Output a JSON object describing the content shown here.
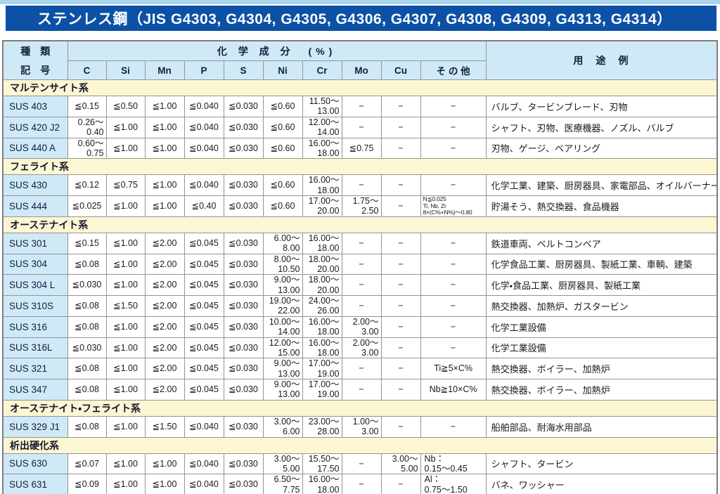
{
  "title": "ステンレス鋼（JIS G4303, G4304, G4305, G4306, G4307, G4308, G4309, G4313, G4314）",
  "header": {
    "col1_line1": "種　類",
    "col1_line2": "記　号",
    "chem_group": "化 学 成 分　(%)",
    "elements": [
      "C",
      "Si",
      "Mn",
      "P",
      "S",
      "Ni",
      "Cr",
      "Mo",
      "Cu",
      "そ の 他"
    ],
    "usage": "用　途　例"
  },
  "colors": {
    "title_bar": "#0c51a6",
    "top_strip": "#a9d4eb",
    "header_blue": "#cfe9f7",
    "section_yellow": "#fcf6d3",
    "border_gray": "#949494"
  },
  "sections": [
    {
      "name": "マルテンサイト系",
      "rows": [
        {
          "code": "SUS 403",
          "c": "≦0.15",
          "si": "≦0.50",
          "mn": "≦1.00",
          "p": "≦0.040",
          "s": "≦0.030",
          "ni": "≦0.60",
          "cr": "11.50～\n13.00",
          "mo": "−",
          "cu": "−",
          "other": "−",
          "use": "バルブ、タービンブレード、刃物"
        },
        {
          "code": "SUS 420 J2",
          "c": "0.26～\n0.40",
          "si": "≦1.00",
          "mn": "≦1.00",
          "p": "≦0.040",
          "s": "≦0.030",
          "ni": "≦0.60",
          "cr": "12.00～\n14.00",
          "mo": "−",
          "cu": "−",
          "other": "−",
          "use": "シャフト、刃物、医療機器、ノズル、バルブ"
        },
        {
          "code": "SUS 440 A",
          "c": "0.60～\n0.75",
          "si": "≦1.00",
          "mn": "≦1.00",
          "p": "≦0.040",
          "s": "≦0.030",
          "ni": "≦0.60",
          "cr": "16.00～\n18.00",
          "mo": "≦0.75",
          "cu": "−",
          "other": "−",
          "use": "刃物、ゲージ、ベアリング"
        }
      ]
    },
    {
      "name": "フェライト系",
      "rows": [
        {
          "code": "SUS 430",
          "c": "≦0.12",
          "si": "≦0.75",
          "mn": "≦1.00",
          "p": "≦0.040",
          "s": "≦0.030",
          "ni": "≦0.60",
          "cr": "16.00～\n18.00",
          "mo": "−",
          "cu": "−",
          "other": "−",
          "use": "化学工業、建築、厨房器具、家電部品、オイルバーナー部品"
        },
        {
          "code": "SUS 444",
          "c": "≦0.025",
          "si": "≦1.00",
          "mn": "≦1.00",
          "p": "≦0.40",
          "s": "≦0.030",
          "ni": "≦0.60",
          "cr": "17.00～\n20.00",
          "mo": "1.75～\n2.50",
          "cu": "−",
          "other": "N≦0.025\nTi, Nb, Zr\n8×(C%+N%)～0.80",
          "use": "貯湯そう、熱交換器、食品機器"
        }
      ]
    },
    {
      "name": "オーステナイト系",
      "rows": [
        {
          "code": "SUS 301",
          "c": "≦0.15",
          "si": "≦1.00",
          "mn": "≦2.00",
          "p": "≦0.045",
          "s": "≦0.030",
          "ni": "6.00～\n8.00",
          "cr": "16.00～\n18.00",
          "mo": "−",
          "cu": "−",
          "other": "−",
          "use": "鉄道車両、ベルトコンベア"
        },
        {
          "code": "SUS 304",
          "c": "≦0.08",
          "si": "≦1.00",
          "mn": "≦2.00",
          "p": "≦0.045",
          "s": "≦0.030",
          "ni": "8.00～\n10.50",
          "cr": "18.00～\n20.00",
          "mo": "−",
          "cu": "−",
          "other": "−",
          "use": "化学食品工業、厨房器具、製紙工業、車輌、建築"
        },
        {
          "code": "SUS 304 L",
          "c": "≦0.030",
          "si": "≦1.00",
          "mn": "≦2.00",
          "p": "≦0.045",
          "s": "≦0.030",
          "ni": "9.00～\n13.00",
          "cr": "18.00～\n20.00",
          "mo": "−",
          "cu": "−",
          "other": "−",
          "use": "化学・食品工業、厨房器具、製紙工業"
        },
        {
          "code": "SUS 310S",
          "c": "≦0.08",
          "si": "≦1.50",
          "mn": "≦2.00",
          "p": "≦0.045",
          "s": "≦0.030",
          "ni": "19.00～\n22.00",
          "cr": "24.00～\n26.00",
          "mo": "−",
          "cu": "−",
          "other": "−",
          "use": "熱交換器、加熱炉、ガスタービン"
        },
        {
          "code": "SUS 316",
          "c": "≦0.08",
          "si": "≦1.00",
          "mn": "≦2.00",
          "p": "≦0.045",
          "s": "≦0.030",
          "ni": "10.00～\n14.00",
          "cr": "16.00～\n18.00",
          "mo": "2.00～\n3.00",
          "cu": "−",
          "other": "−",
          "use": "化学工業設備"
        },
        {
          "code": "SUS 316L",
          "c": "≦0.030",
          "si": "≦1.00",
          "mn": "≦2.00",
          "p": "≦0.045",
          "s": "≦0.030",
          "ni": "12.00～\n15.00",
          "cr": "16.00～\n18.00",
          "mo": "2.00～\n3.00",
          "cu": "−",
          "other": "−",
          "use": "化学工業設備"
        },
        {
          "code": "SUS 321",
          "c": "≦0.08",
          "si": "≦1.00",
          "mn": "≦2.00",
          "p": "≦0.045",
          "s": "≦0.030",
          "ni": "9.00～\n13.00",
          "cr": "17.00～\n19.00",
          "mo": "−",
          "cu": "−",
          "other": "Ti≧5×C%",
          "use": "熱交換器、ボイラー、加熱炉"
        },
        {
          "code": "SUS 347",
          "c": "≦0.08",
          "si": "≦1.00",
          "mn": "≦2.00",
          "p": "≦0.045",
          "s": "≦0.030",
          "ni": "9.00～\n13.00",
          "cr": "17.00～\n19.00",
          "mo": "−",
          "cu": "−",
          "other": "Nb≧10×C%",
          "use": "熱交換器、ボイラー、加熱炉"
        }
      ]
    },
    {
      "name": "オーステナイト・フェライト系",
      "rows": [
        {
          "code": "SUS 329 J1",
          "c": "≦0.08",
          "si": "≦1.00",
          "mn": "≦1.50",
          "p": "≦0.040",
          "s": "≦0.030",
          "ni": "3.00～\n6.00",
          "cr": "23.00～\n28.00",
          "mo": "1.00～\n3.00",
          "cu": "−",
          "other": "−",
          "use": "船舶部品、耐海水用部品"
        }
      ]
    },
    {
      "name": "析出硬化系",
      "rows": [
        {
          "code": "SUS 630",
          "c": "≦0.07",
          "si": "≦1.00",
          "mn": "≦1.00",
          "p": "≦0.040",
          "s": "≦0.030",
          "ni": "3.00～\n5.00",
          "cr": "15.50～\n17.50",
          "mo": "−",
          "cu": "3.00～\n5.00",
          "other": "Nb：\n0.15～0.45",
          "use": "シャフト、タービン"
        },
        {
          "code": "SUS 631",
          "c": "≦0.09",
          "si": "≦1.00",
          "mn": "≦1.00",
          "p": "≦0.040",
          "s": "≦0.030",
          "ni": "6.50～\n7.75",
          "cr": "16.00～\n18.00",
          "mo": "−",
          "cu": "−",
          "other": "Al：\n0.75～1.50",
          "use": "バネ、ワッシャー"
        }
      ]
    }
  ]
}
